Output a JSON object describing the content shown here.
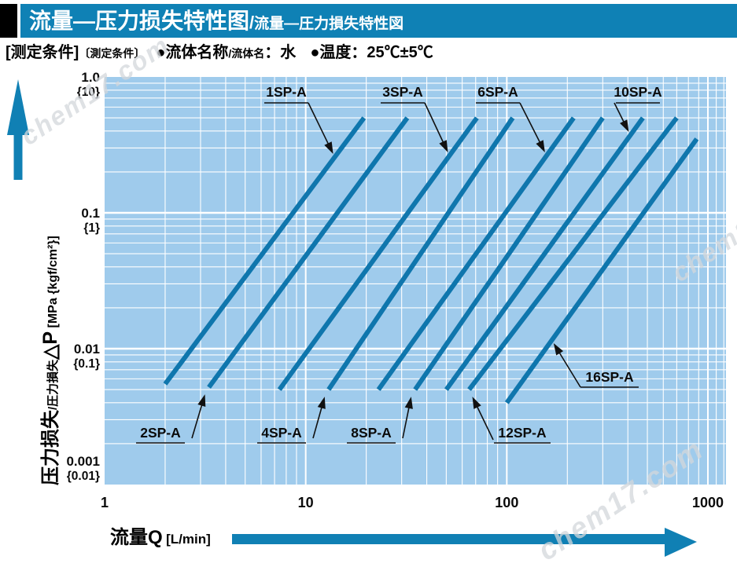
{
  "watermark": "chem17.com",
  "header": {
    "title_cn": "流量—压力损失特性图",
    "separator": "/",
    "title_jp": "流量—圧力損失特性図"
  },
  "conditions": {
    "label_main": "[测定条件]",
    "label_sub": "〔測定条件〕",
    "fluid_label_cn": "●流体名称",
    "fluid_label_jp": "/流体名",
    "fluid_value": "：水",
    "temperature": "●温度：25℃±5℃"
  },
  "chart_data": {
    "type": "line",
    "title": "流量—压力损失特性图",
    "grid": true,
    "x_axis": {
      "label": "流量Q",
      "unit": "[L/min]",
      "scale": "log",
      "range": [
        1,
        1000
      ],
      "ticks": [
        "1",
        "10",
        "100",
        "1000"
      ],
      "tick_values": [
        1,
        10,
        100,
        1000
      ]
    },
    "y_axis": {
      "label_cn": "压力损失",
      "label_jp": "/圧力損失",
      "symbol": "△P",
      "unit": " [MPa {kgf/cm²}]",
      "scale": "log",
      "range": [
        0.001,
        1.0
      ],
      "ticks": [
        {
          "mpa": "1.0",
          "kgf": "{10}",
          "value": 1.0
        },
        {
          "mpa": "0.1",
          "kgf": "{1}",
          "value": 0.1
        },
        {
          "mpa": "0.01",
          "kgf": "{0.1}",
          "value": 0.01
        },
        {
          "mpa": "0.001",
          "kgf": "{0.01}",
          "value": 0.001
        }
      ]
    },
    "series": [
      {
        "name": "1SP-A",
        "label_side": "top",
        "points": [
          [
            2.0,
            0.0055
          ],
          [
            19.5,
            0.5
          ]
        ]
      },
      {
        "name": "2SP-A",
        "label_side": "bottom",
        "points": [
          [
            3.3,
            0.0052
          ],
          [
            32,
            0.5
          ]
        ]
      },
      {
        "name": "3SP-A",
        "label_side": "top",
        "points": [
          [
            7.4,
            0.005
          ],
          [
            71,
            0.5
          ]
        ]
      },
      {
        "name": "4SP-A",
        "label_side": "bottom",
        "points": [
          [
            13,
            0.005
          ],
          [
            107,
            0.5
          ]
        ]
      },
      {
        "name": "6SP-A",
        "label_side": "top",
        "points": [
          [
            23,
            0.005
          ],
          [
            215,
            0.5
          ]
        ]
      },
      {
        "name": "8SP-A",
        "label_side": "bottom",
        "points": [
          [
            35,
            0.005
          ],
          [
            300,
            0.5
          ]
        ]
      },
      {
        "name": "10SP-A",
        "label_side": "top",
        "points": [
          [
            50,
            0.005
          ],
          [
            475,
            0.5
          ]
        ]
      },
      {
        "name": "12SP-A",
        "label_side": "bottom",
        "points": [
          [
            65,
            0.005
          ],
          [
            700,
            0.5
          ]
        ]
      },
      {
        "name": "16SP-A",
        "label_side": "right",
        "points": [
          [
            100,
            0.004
          ],
          [
            880,
            0.35
          ]
        ]
      }
    ],
    "colors": {
      "plot_bg": "#9fcbec",
      "grid": "#ffffff",
      "line": "#0f76ad",
      "accent": "#1080b4",
      "annotation": "#111111"
    }
  }
}
